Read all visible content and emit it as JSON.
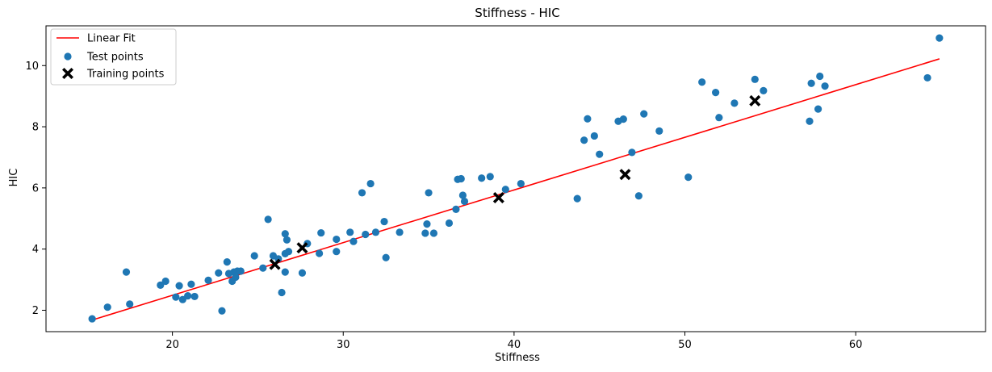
{
  "chart_data": {
    "type": "scatter",
    "title": "Stiffness - HIC",
    "xlabel": "Stiffness",
    "ylabel": "HIC",
    "xlim": [
      12.6,
      67.6
    ],
    "ylim": [
      1.3,
      11.3
    ],
    "xticks": [
      20,
      30,
      40,
      50,
      60
    ],
    "yticks": [
      2,
      4,
      6,
      8,
      10
    ],
    "grid": false,
    "legend_position": "top-left",
    "series": [
      {
        "name": "Linear Fit",
        "kind": "line",
        "color": "#ff0000",
        "x": [
          15.3,
          64.9
        ],
        "y": [
          1.68,
          10.22
        ]
      },
      {
        "name": "Test points",
        "kind": "scatter",
        "marker": "circle",
        "color": "#1f77b4",
        "points": [
          [
            15.3,
            1.72
          ],
          [
            16.2,
            2.1
          ],
          [
            17.3,
            3.25
          ],
          [
            17.5,
            2.2
          ],
          [
            19.3,
            2.82
          ],
          [
            19.6,
            2.95
          ],
          [
            20.2,
            2.43
          ],
          [
            20.4,
            2.8
          ],
          [
            20.6,
            2.35
          ],
          [
            20.9,
            2.47
          ],
          [
            21.1,
            2.85
          ],
          [
            21.3,
            2.45
          ],
          [
            22.1,
            2.98
          ],
          [
            22.7,
            3.22
          ],
          [
            22.9,
            1.98
          ],
          [
            23.2,
            3.58
          ],
          [
            23.3,
            3.2
          ],
          [
            23.5,
            2.95
          ],
          [
            23.6,
            3.25
          ],
          [
            23.7,
            3.08
          ],
          [
            23.8,
            3.28
          ],
          [
            24.0,
            3.28
          ],
          [
            24.8,
            3.78
          ],
          [
            25.3,
            3.38
          ],
          [
            25.6,
            4.97
          ],
          [
            25.9,
            3.78
          ],
          [
            26.2,
            3.68
          ],
          [
            26.4,
            2.58
          ],
          [
            26.6,
            4.5
          ],
          [
            26.6,
            3.25
          ],
          [
            26.7,
            4.3
          ],
          [
            26.6,
            3.85
          ],
          [
            26.8,
            3.92
          ],
          [
            27.6,
            3.22
          ],
          [
            27.9,
            4.18
          ],
          [
            28.6,
            3.86
          ],
          [
            28.7,
            4.53
          ],
          [
            29.6,
            4.32
          ],
          [
            29.6,
            3.92
          ],
          [
            30.4,
            4.55
          ],
          [
            30.6,
            4.25
          ],
          [
            31.1,
            5.84
          ],
          [
            31.3,
            4.48
          ],
          [
            31.6,
            6.14
          ],
          [
            31.9,
            4.55
          ],
          [
            32.4,
            4.9
          ],
          [
            32.5,
            3.72
          ],
          [
            33.3,
            4.55
          ],
          [
            34.8,
            4.52
          ],
          [
            34.9,
            4.82
          ],
          [
            35.0,
            5.84
          ],
          [
            35.3,
            4.52
          ],
          [
            36.2,
            4.85
          ],
          [
            36.6,
            5.3
          ],
          [
            36.7,
            6.28
          ],
          [
            36.9,
            6.3
          ],
          [
            37.0,
            5.76
          ],
          [
            37.1,
            5.56
          ],
          [
            38.1,
            6.32
          ],
          [
            38.6,
            6.37
          ],
          [
            39.5,
            5.95
          ],
          [
            40.4,
            6.14
          ],
          [
            43.7,
            5.65
          ],
          [
            44.1,
            7.56
          ],
          [
            44.3,
            8.26
          ],
          [
            44.7,
            7.7
          ],
          [
            45.0,
            7.1
          ],
          [
            46.1,
            8.18
          ],
          [
            46.4,
            8.25
          ],
          [
            46.9,
            7.16
          ],
          [
            47.3,
            5.74
          ],
          [
            47.6,
            8.42
          ],
          [
            48.5,
            7.86
          ],
          [
            50.2,
            6.35
          ],
          [
            51.0,
            9.46
          ],
          [
            51.8,
            9.12
          ],
          [
            52.0,
            8.3
          ],
          [
            52.9,
            8.77
          ],
          [
            54.1,
            9.55
          ],
          [
            54.6,
            9.18
          ],
          [
            57.3,
            8.18
          ],
          [
            57.4,
            9.42
          ],
          [
            57.8,
            8.58
          ],
          [
            57.9,
            9.65
          ],
          [
            58.2,
            9.33
          ],
          [
            64.2,
            9.6
          ],
          [
            64.9,
            10.9
          ]
        ]
      },
      {
        "name": "Training points",
        "kind": "scatter",
        "marker": "X",
        "color": "#000000",
        "points": [
          [
            26.0,
            3.5
          ],
          [
            27.6,
            4.04
          ],
          [
            39.1,
            5.68
          ],
          [
            46.5,
            6.44
          ],
          [
            54.1,
            8.85
          ]
        ]
      }
    ]
  }
}
